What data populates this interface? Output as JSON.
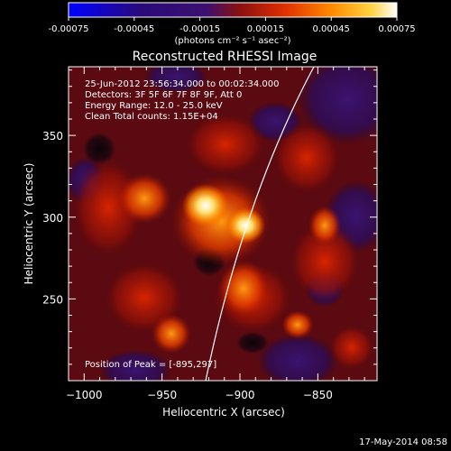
{
  "colorbar": {
    "tick_labels": [
      "-0.00075",
      "-0.00045",
      "-0.00015",
      "0.00015",
      "0.00045",
      "0.00075"
    ],
    "unit_label": "(photons cm⁻² s⁻¹ asec⁻²)",
    "range": [
      -0.00075,
      0.00075
    ],
    "colors": [
      "#0000ff",
      "#2a0a7a",
      "#3c1070",
      "#8a1010",
      "#e03000",
      "#ff8a00",
      "#ffd240",
      "#ffffff"
    ]
  },
  "plot": {
    "title": "Reconstructed RHESSI Image",
    "xlabel": "Heliocentric X (arcsec)",
    "ylabel": "Heliocentric Y (arcsec)",
    "xlim": [
      -1010,
      -812
    ],
    "ylim": [
      200,
      392
    ],
    "x_ticks": [
      -1000,
      -950,
      -900,
      -850
    ],
    "x_tick_labels": [
      "−1000",
      "−950",
      "−900",
      "−850"
    ],
    "y_ticks": [
      250,
      300,
      350
    ],
    "y_tick_labels": [
      "250",
      "300",
      "350"
    ],
    "info_lines": [
      "25-Jun-2012 23:56:34.000 to 00:02:34.000",
      "Detectors: 3F 5F 6F 7F 8F 9F, Att 0",
      "Energy Range: 12.0 - 25.0 keV",
      "Clean    Total counts: 1.15E+04"
    ],
    "peak_text": "Position of Peak = [-895,297]",
    "peak": [
      -895,
      297
    ],
    "limb_color": "#ffffff"
  },
  "footer": {
    "date": "17-May-2014 08:58"
  }
}
